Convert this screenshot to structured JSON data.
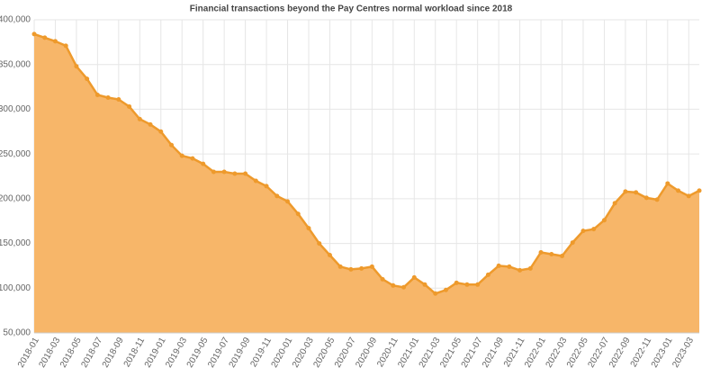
{
  "chart_data": {
    "type": "area",
    "title": "Financial transactions beyond the Pay Centres normal workload since 2018",
    "categories": [
      "2018-01",
      null,
      "2018-03",
      null,
      "2018-05",
      null,
      "2018-07",
      null,
      "2018-09",
      null,
      "2018-11",
      null,
      "2019-01",
      null,
      "2019-03",
      null,
      "2019-05",
      null,
      "2019-07",
      null,
      "2019-09",
      null,
      "2019-11",
      null,
      "2020-01",
      null,
      "2020-03",
      null,
      "2020-05",
      null,
      "2020-07",
      null,
      "2020-09",
      null,
      "2020-11",
      null,
      "2021-01",
      null,
      "2021-03",
      null,
      "2021-05",
      null,
      "2021-07",
      null,
      "2021-09",
      null,
      "2021-11",
      null,
      "2022-01",
      null,
      "2022-03",
      null,
      "2022-05",
      null,
      "2022-07",
      null,
      "2022-09",
      null,
      "2022-11",
      null,
      "2023-01",
      null,
      "2023-03",
      null
    ],
    "values": [
      384000,
      380000,
      376000,
      371000,
      348000,
      334000,
      316000,
      313000,
      311000,
      303000,
      289000,
      283000,
      275000,
      260000,
      248000,
      245000,
      239000,
      230000,
      230000,
      228000,
      228000,
      220000,
      214000,
      203000,
      197000,
      183000,
      167000,
      150000,
      137000,
      124000,
      121000,
      122000,
      124000,
      110000,
      103000,
      101000,
      112000,
      104000,
      94000,
      98000,
      106000,
      104000,
      104000,
      115000,
      125000,
      124000,
      120000,
      122000,
      140000,
      138000,
      136000,
      151000,
      164000,
      166000,
      176000,
      195000,
      208000,
      207000,
      201000,
      199000,
      217000,
      209000,
      203000,
      209000
    ],
    "color": "#ee9a2c",
    "fill": "#f7b669",
    "ylim": [
      50000,
      400000
    ],
    "yticks": [
      {
        "value": 50000,
        "label": "50,000"
      },
      {
        "value": 100000,
        "label": "100,000"
      },
      {
        "value": 150000,
        "label": "150,000"
      },
      {
        "value": 200000,
        "label": "200,000"
      },
      {
        "value": 250000,
        "label": "250,000"
      },
      {
        "value": 300000,
        "label": "300,000"
      },
      {
        "value": 350000,
        "label": "350,000"
      },
      {
        "value": 400000,
        "label": "400,000"
      }
    ],
    "grid": true
  }
}
